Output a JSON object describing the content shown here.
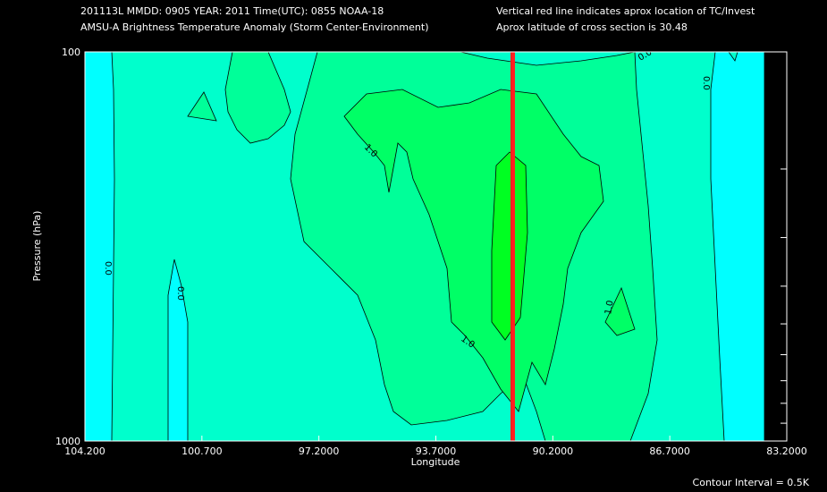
{
  "header": {
    "line1_left": "201113L  MMDD: 0905 YEAR: 2011 Time(UTC): 0855 NOAA-18",
    "line2_left": "AMSU-A Brightness Temperature Anomaly (Storm Center-Environment)",
    "line1_right": "Vertical red line indicates aprox location of TC/Invest",
    "line2_right": "Aprox latitude of cross section is 30.48"
  },
  "footer": {
    "contour_interval": "Contour Interval = 0.5K"
  },
  "colors": {
    "background": "#000000",
    "level_below_0": "#00FFFF",
    "level_0_0.5": "#00FFCC",
    "level_0.5_1": "#00FF99",
    "level_1_1.5": "#00FF66",
    "level_above_1.5": "#00FF22",
    "tc_line": "#FF2020"
  },
  "chart_data": {
    "type": "contour",
    "title": "AMSU-A Brightness Temperature Anomaly (Storm Center-Environment)",
    "xlabel": "Longitude",
    "ylabel": "Pressure (hPa)",
    "x_ticks": [
      "104.200",
      "100.700",
      "97.2000",
      "93.7000",
      "90.2000",
      "86.7000",
      "83.2000"
    ],
    "y_ticks": [
      "100",
      "1000"
    ],
    "xlim": [
      104.2,
      83.2
    ],
    "ylim": [
      1000,
      100
    ],
    "y_scale": "log",
    "contour_interval_K": 0.5,
    "contour_labels": [
      "0.0",
      "0.0",
      "0.0",
      "0.0",
      "1.0",
      "1.0",
      "1.0"
    ],
    "tc_longitude": 91.4,
    "cross_section_latitude": 30.48,
    "anomaly_regions": [
      {
        "level": "below 0",
        "x": [
          104.2,
          104.2,
          83.6,
          83.6,
          84.2,
          83.6,
          83.6,
          84.2
        ],
        "y": [
          1000,
          100,
          100,
          1000,
          1000,
          100,
          1000,
          1000
        ]
      },
      {
        "level": "0.5-1.0",
        "x": [
          101.3,
          100.7,
          100.1,
          99.5,
          98.9,
          98.3,
          97.7,
          97.1,
          96.5,
          95.9,
          95.3,
          94.7,
          94.1,
          93.5,
          92.9,
          92.3,
          91.7,
          91.1,
          90.5,
          89.9,
          89.3,
          88.7,
          88.1,
          87.5,
          87.0,
          86.9,
          87.0,
          87.2,
          87.5,
          87.9,
          88.4,
          88.9,
          89.5,
          90.1,
          90.7,
          91.3,
          91.9,
          92.5,
          93.1,
          93.7,
          94.3,
          94.9,
          95.5,
          96.0,
          96.4,
          96.7,
          96.9,
          97.0,
          97.1,
          97.2,
          97.3,
          98.0,
          98.7,
          99.4,
          100.1,
          100.8,
          101.3
        ],
        "y": [
          100,
          100,
          100,
          100,
          100,
          100,
          100,
          100,
          100,
          100,
          100,
          100,
          100,
          100,
          100,
          100,
          100,
          100,
          100,
          100,
          100,
          100,
          100,
          100,
          100,
          150,
          200,
          300,
          400,
          500,
          600,
          700,
          800,
          900,
          1000,
          1000,
          1000,
          1000,
          1000,
          1000,
          1000,
          1000,
          900,
          800,
          700,
          600,
          500,
          400,
          300,
          200,
          150,
          160,
          180,
          200,
          150,
          120,
          100
        ]
      },
      {
        "level": "1.0-1.5",
        "x": [
          96.5,
          95.5,
          94.5,
          93.5,
          92.5,
          91.5,
          90.5,
          89.8,
          89.3,
          89.0,
          89.3,
          89.8,
          90.5,
          91.0,
          91.6,
          92.2,
          92.8,
          93.4,
          94.0,
          94.5,
          94.9,
          95.2,
          95.5,
          95.8,
          96.1,
          96.5
        ],
        "y": [
          160,
          150,
          140,
          150,
          150,
          140,
          180,
          250,
          350,
          450,
          550,
          650,
          750,
          850,
          750,
          650,
          560,
          480,
          400,
          320,
          260,
          220,
          200,
          240,
          200,
          160
        ]
      },
      {
        "level": "above 1.5",
        "x": [
          92.2,
          91.7,
          91.3,
          91.2,
          91.4,
          91.7,
          92.0,
          92.3,
          92.5,
          92.4,
          92.2
        ],
        "y": [
          230,
          220,
          260,
          330,
          420,
          520,
          600,
          520,
          420,
          300,
          230
        ]
      }
    ],
    "grid": false,
    "legend": "none"
  }
}
